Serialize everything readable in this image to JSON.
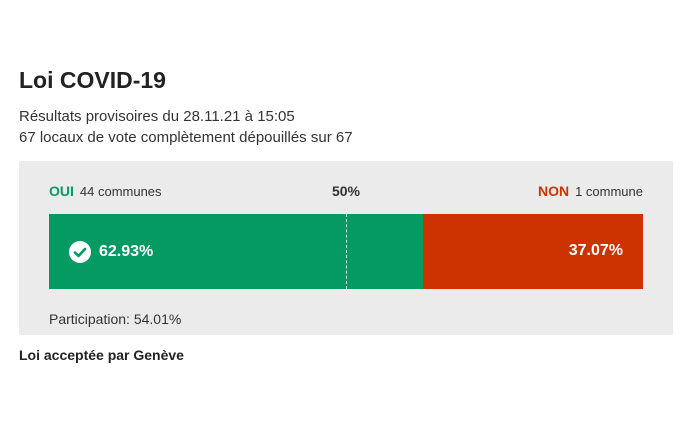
{
  "header": {
    "title": "Loi COVID-19",
    "subtitle_line1": "Résultats provisoires du 28.11.21 à 15:05",
    "subtitle_line2": "67 locaux de vote complètement dépouillés sur 67"
  },
  "results": {
    "yes_label": "OUI",
    "yes_communes": "44 communes",
    "no_label": "NON",
    "no_communes": "1 commune",
    "midpoint_label": "50%",
    "yes_percent_text": "62.93%",
    "no_percent_text": "37.07%",
    "yes_share": 62.93,
    "no_share": 37.07,
    "participation": "Participation: 54.01%",
    "accepted_icon": "check-circle-icon"
  },
  "footer": {
    "outcome": "Loi acceptée par Genève"
  },
  "colors": {
    "yes": "#069a63",
    "no": "#cc3300",
    "panel_bg": "#ebebeb"
  }
}
